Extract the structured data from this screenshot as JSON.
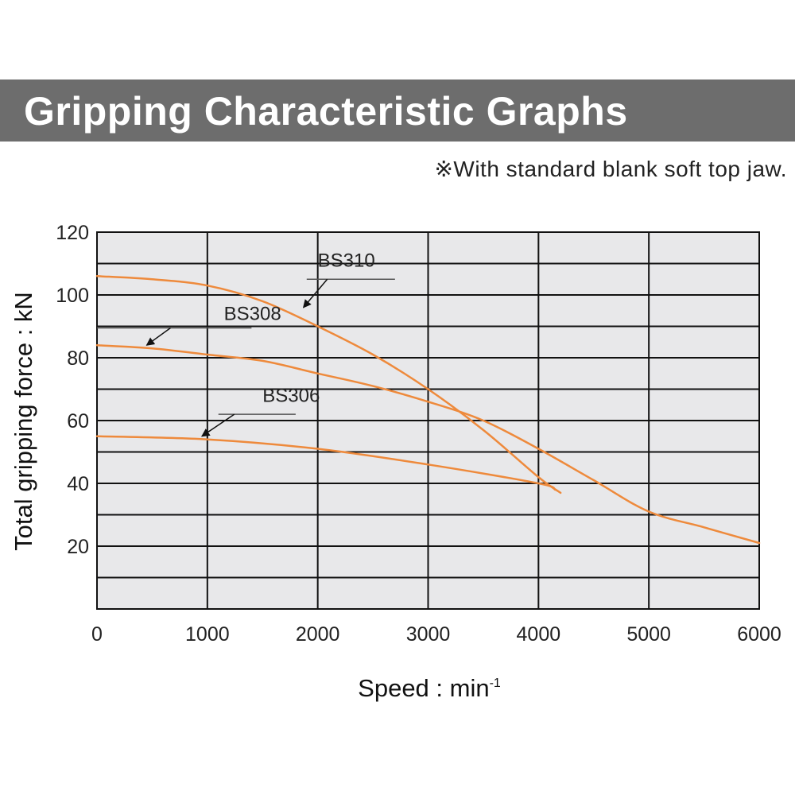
{
  "header": {
    "title": "Gripping Characteristic Graphs",
    "note": "※With standard blank soft top jaw."
  },
  "colors": {
    "banner": "#6d6d6d",
    "plot_background": "#e8e8ea",
    "grid": "#111111",
    "curve": "#ee8a3c"
  },
  "chart_data": {
    "type": "line",
    "xlabel": "Speed : min",
    "xlabel_superscript": "-1",
    "ylabel": "Total gripping force : kN",
    "xlim": [
      0,
      6000
    ],
    "ylim": [
      0,
      120
    ],
    "x_ticks": [
      0,
      1000,
      2000,
      3000,
      4000,
      5000,
      6000
    ],
    "y_ticks": [
      20,
      40,
      60,
      80,
      100,
      120
    ],
    "grid": true,
    "grid_x_step": 1000,
    "grid_y_step": 10,
    "series": [
      {
        "name": "BS310",
        "x": [
          0,
          500,
          1000,
          1500,
          2000,
          2500,
          3000,
          3500,
          4000,
          4200
        ],
        "y": [
          106,
          105,
          103,
          98,
          90,
          81,
          70,
          57,
          42,
          37
        ]
      },
      {
        "name": "BS308",
        "x": [
          0,
          500,
          1000,
          1500,
          2000,
          2500,
          3000,
          3500,
          4000,
          4500,
          5000,
          5500,
          6000
        ],
        "y": [
          84,
          83,
          81,
          79,
          75,
          71,
          66,
          60,
          51,
          41,
          31,
          26,
          21
        ]
      },
      {
        "name": "BS306",
        "x": [
          0,
          1000,
          2000,
          3000,
          4000,
          4150
        ],
        "y": [
          55,
          54,
          51,
          46,
          40,
          38
        ]
      }
    ],
    "labels": [
      {
        "text": "BS310",
        "x": 2000,
        "y": 109,
        "line_x": [
          1900,
          2700
        ],
        "line_y": 105,
        "arrow_to": [
          1870,
          96
        ]
      },
      {
        "text": "BS308",
        "x": 1150,
        "y": 92,
        "line_x": [
          0,
          1400
        ],
        "line_y": 89.5,
        "arrow_to": [
          450,
          84
        ]
      },
      {
        "text": "BS306",
        "x": 1500,
        "y": 66,
        "line_x": [
          1100,
          1800
        ],
        "line_y": 62,
        "arrow_to": [
          950,
          55
        ]
      }
    ]
  }
}
